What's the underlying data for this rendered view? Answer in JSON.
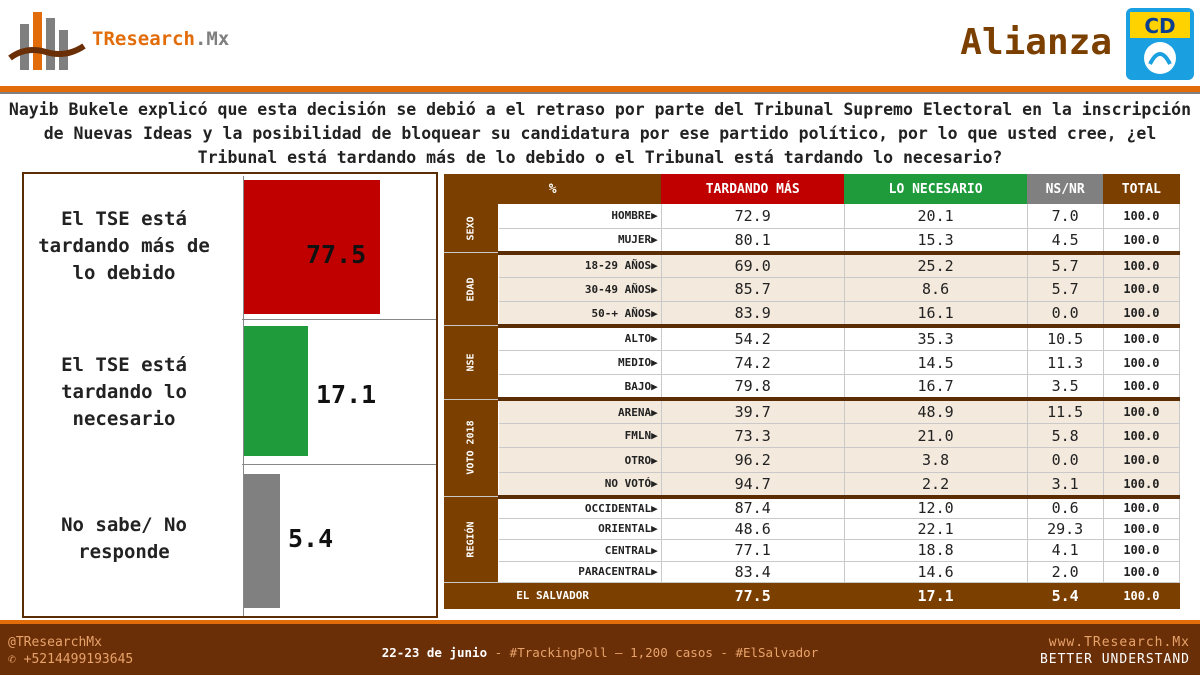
{
  "header": {
    "brand_name": "TResearch",
    "brand_suffix": ".Mx",
    "party_title": "Alianza",
    "party_logo_text": "CD"
  },
  "question": "Nayib Bukele explicó que esta decisión se debió a el retraso por parte del Tribunal Supremo Electoral en la inscripción de Nuevas Ideas y la posibilidad de bloquear su candidatura por ese partido político, por lo que usted cree, ¿el Tribunal está tardando más de lo debido o el Tribunal está tardando lo necesario?",
  "chart_data": {
    "type": "bar",
    "categories": [
      "El TSE está tardando más de lo debido",
      "El TSE está tardando lo necesario",
      "No sabe/ No responde"
    ],
    "values": [
      77.5,
      17.1,
      5.4
    ],
    "colors": [
      "#c00000",
      "#1f9b3c",
      "#808080"
    ],
    "value_labels": [
      "77.5",
      "17.1",
      "5.4"
    ]
  },
  "bars": [
    {
      "label": "El TSE está tardando más de lo debido",
      "value": "77.5",
      "color": "#c00000"
    },
    {
      "label": "El TSE está tardando lo necesario",
      "value": "17.1",
      "color": "#1f9b3c"
    },
    {
      "label": "No sabe/ No responde",
      "value": "5.4",
      "color": "#808080"
    }
  ],
  "table": {
    "headers": [
      "%",
      "TARDANDO MÁS",
      "LO NECESARIO",
      "NS/NR",
      "TOTAL"
    ],
    "header_colors": [
      "#7b3f00",
      "#c00000",
      "#1f9b3c",
      "#808080",
      "#7b3f00"
    ],
    "groups": [
      {
        "name": "SEXO",
        "rows": [
          {
            "label": "HOMBRE▶",
            "values": [
              "72.9",
              "20.1",
              "7.0",
              "100.0"
            ]
          },
          {
            "label": "MUJER▶",
            "values": [
              "80.1",
              "15.3",
              "4.5",
              "100.0"
            ]
          }
        ]
      },
      {
        "name": "EDAD",
        "rows": [
          {
            "label": "18-29 AÑOS▶",
            "values": [
              "69.0",
              "25.2",
              "5.7",
              "100.0"
            ]
          },
          {
            "label": "30-49 AÑOS▶",
            "values": [
              "85.7",
              "8.6",
              "5.7",
              "100.0"
            ]
          },
          {
            "label": "50-+ AÑOS▶",
            "values": [
              "83.9",
              "16.1",
              "0.0",
              "100.0"
            ]
          }
        ]
      },
      {
        "name": "NSE",
        "rows": [
          {
            "label": "ALTO▶",
            "values": [
              "54.2",
              "35.3",
              "10.5",
              "100.0"
            ]
          },
          {
            "label": "MEDIO▶",
            "values": [
              "74.2",
              "14.5",
              "11.3",
              "100.0"
            ]
          },
          {
            "label": "BAJO▶",
            "values": [
              "79.8",
              "16.7",
              "3.5",
              "100.0"
            ]
          }
        ]
      },
      {
        "name": "VOTO 2018",
        "rows": [
          {
            "label": "ARENA▶",
            "values": [
              "39.7",
              "48.9",
              "11.5",
              "100.0"
            ]
          },
          {
            "label": "FMLN▶",
            "values": [
              "73.3",
              "21.0",
              "5.8",
              "100.0"
            ]
          },
          {
            "label": "OTRO▶",
            "values": [
              "96.2",
              "3.8",
              "0.0",
              "100.0"
            ]
          },
          {
            "label": "NO VOTÓ▶",
            "values": [
              "94.7",
              "2.2",
              "3.1",
              "100.0"
            ]
          }
        ]
      },
      {
        "name": "REGIÓN",
        "rows": [
          {
            "label": "OCCIDENTAL▶",
            "values": [
              "87.4",
              "12.0",
              "0.6",
              "100.0"
            ]
          },
          {
            "label": "ORIENTAL▶",
            "values": [
              "48.6",
              "22.1",
              "29.3",
              "100.0"
            ]
          },
          {
            "label": "CENTRAL▶",
            "values": [
              "77.1",
              "18.8",
              "4.1",
              "100.0"
            ]
          },
          {
            "label": "PARACENTRAL▶",
            "values": [
              "83.4",
              "14.6",
              "2.0",
              "100.0"
            ]
          }
        ]
      }
    ],
    "total_row": {
      "label": "EL SALVADOR",
      "values": [
        "77.5",
        "17.1",
        "5.4",
        "100.0"
      ]
    }
  },
  "footer": {
    "handle": "@TResearchMx",
    "phone": "+5214499193645",
    "date": "22-23 de junio",
    "details": " - #TrackingPoll – 1,200 casos - #ElSalvador",
    "website": "www.TResearch.Mx",
    "tagline": "BETTER UNDERSTAND"
  }
}
